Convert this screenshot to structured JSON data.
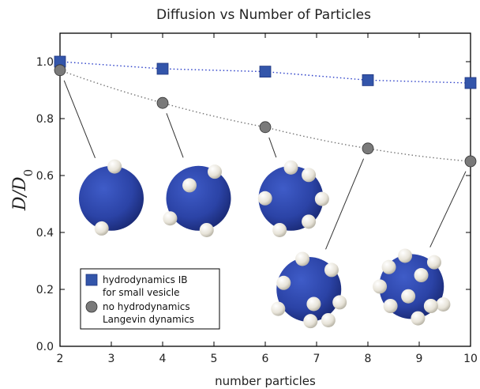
{
  "chart_data": {
    "type": "scatter",
    "title": "Diffusion vs Number of Particles",
    "xlabel": "number particles",
    "ylabel": "D/D0",
    "xlim": [
      2,
      10
    ],
    "ylim": [
      0.0,
      1.1
    ],
    "xticks": [
      "2",
      "3",
      "4",
      "5",
      "6",
      "7",
      "8",
      "9",
      "10"
    ],
    "yticks": [
      "0.0",
      "0.2",
      "0.4",
      "0.6",
      "0.8",
      "1.0"
    ],
    "grid": false,
    "legend_position": "bottom-left",
    "series": [
      {
        "name": "hydrodynamics IB\nfor small vesicle",
        "marker": "square",
        "color": "#3355aa",
        "line": "dotted",
        "line_color": "#2a3ec8",
        "x": [
          2,
          4,
          6,
          8,
          10
        ],
        "y": [
          1.0,
          0.975,
          0.965,
          0.935,
          0.925
        ]
      },
      {
        "name": "no hydrodynamics\nLangevin dynamics",
        "marker": "circle",
        "color": "#7a7a7a",
        "line": "dotted",
        "line_color": "#777777",
        "x": [
          2,
          4,
          6,
          8,
          10
        ],
        "y": [
          0.97,
          0.855,
          0.77,
          0.695,
          0.65
        ]
      }
    ],
    "insets": [
      {
        "particles": 2,
        "points_to_x": 2,
        "center_x": 3,
        "center_y": 0.52
      },
      {
        "particles": 4,
        "points_to_x": 4,
        "center_x": 4.7,
        "center_y": 0.52
      },
      {
        "particles": 6,
        "points_to_x": 6,
        "center_x": 6.5,
        "center_y": 0.52
      },
      {
        "particles": 8,
        "points_to_x": 8,
        "center_x": 6.85,
        "center_y": 0.2
      },
      {
        "particles": 10,
        "points_to_x": 10,
        "center_x": 8.85,
        "center_y": 0.21
      }
    ],
    "colors": {
      "vesicle": "#2b43a6",
      "vesicle_dark": "#16246a",
      "particle": "#e7e3d8"
    }
  }
}
